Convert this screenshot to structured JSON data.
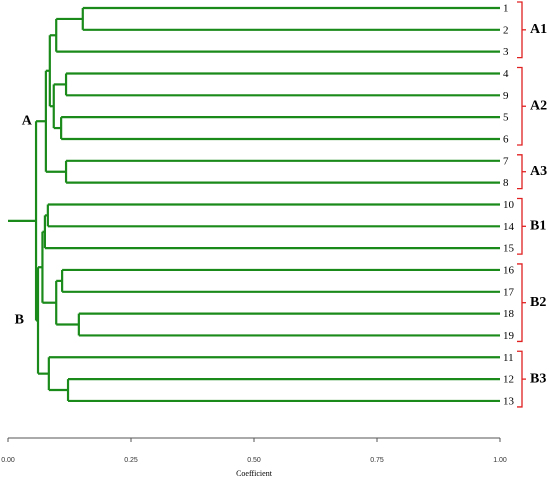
{
  "chart_data": {
    "type": "dendrogram",
    "x_label": "Coefficient",
    "xlim": [
      0,
      1
    ],
    "xticks": [
      {
        "value": 0,
        "label": "0.00"
      },
      {
        "value": 0.25,
        "label": "0.25"
      },
      {
        "value": 0.5,
        "label": "0.50"
      },
      {
        "value": 0.75,
        "label": "0.75"
      },
      {
        "value": 1,
        "label": "1.00"
      }
    ],
    "color": "#1a8a1a",
    "group_color": "#e02020",
    "leaves": [
      "1",
      "2",
      "3",
      "4",
      "9",
      "5",
      "6",
      "7",
      "8",
      "10",
      "14",
      "15",
      "16",
      "17",
      "18",
      "19",
      "11",
      "12",
      "13"
    ],
    "merges": [
      {
        "children": [
          0,
          1
        ],
        "height": 0.152
      },
      {
        "children": [
          19,
          2
        ],
        "height": 0.098
      },
      {
        "children": [
          3,
          4
        ],
        "height": 0.118
      },
      {
        "children": [
          5,
          6
        ],
        "height": 0.108
      },
      {
        "children": [
          21,
          22
        ],
        "height": 0.093
      },
      {
        "children": [
          20,
          23
        ],
        "height": 0.085
      },
      {
        "children": [
          7,
          8
        ],
        "height": 0.118
      },
      {
        "children": [
          24,
          25
        ],
        "height": 0.077
      },
      {
        "children": [
          9,
          10
        ],
        "height": 0.081
      },
      {
        "children": [
          27,
          11
        ],
        "height": 0.075
      },
      {
        "children": [
          12,
          13
        ],
        "height": 0.11
      },
      {
        "children": [
          14,
          15
        ],
        "height": 0.144
      },
      {
        "children": [
          29,
          30
        ],
        "height": 0.098
      },
      {
        "children": [
          28,
          31
        ],
        "height": 0.07
      },
      {
        "children": [
          17,
          18
        ],
        "height": 0.122
      },
      {
        "children": [
          16,
          33
        ],
        "height": 0.083
      },
      {
        "children": [
          32,
          34
        ],
        "height": 0.061
      },
      {
        "children": [
          26,
          35
        ],
        "height": 0.057
      }
    ],
    "groups": [
      {
        "label": "A1",
        "leaves": [
          0,
          2
        ]
      },
      {
        "label": "A2",
        "leaves": [
          3,
          6
        ]
      },
      {
        "label": "A3",
        "leaves": [
          7,
          8
        ]
      },
      {
        "label": "B1",
        "leaves": [
          9,
          11
        ]
      },
      {
        "label": "B2",
        "leaves": [
          12,
          15
        ]
      },
      {
        "label": "B3",
        "leaves": [
          16,
          18
        ]
      }
    ],
    "cluster_labels": [
      {
        "label": "A",
        "merge": 7
      },
      {
        "label": "B",
        "merge": 16
      }
    ]
  }
}
